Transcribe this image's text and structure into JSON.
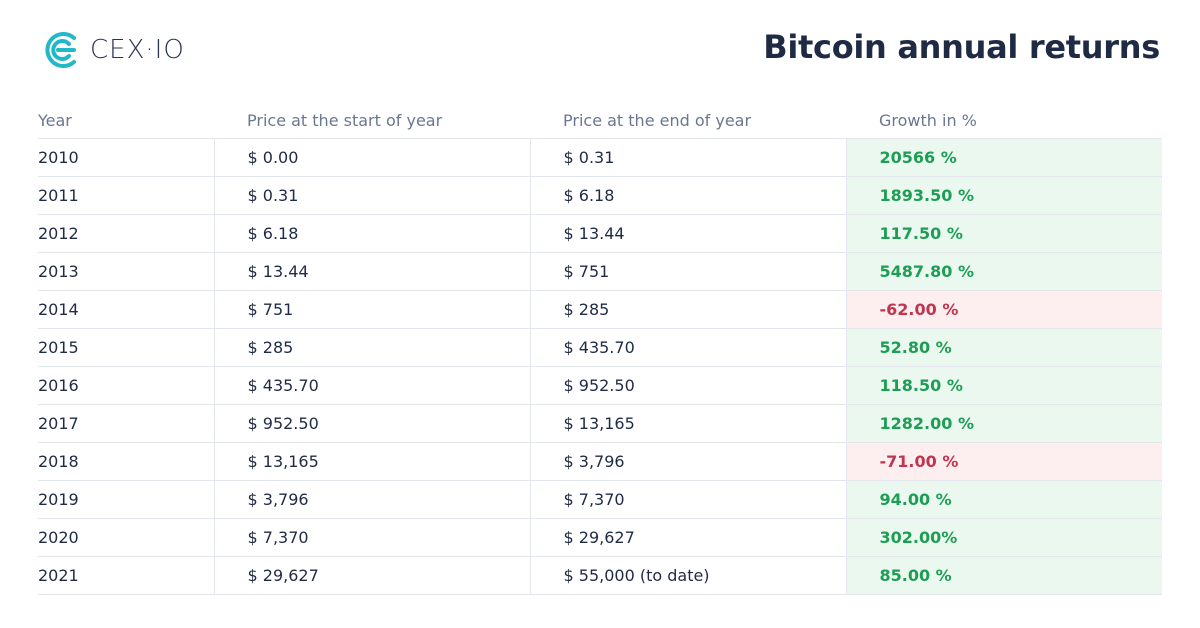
{
  "brand": {
    "name": "CEX·IO",
    "logo_icon": "cex-logo-icon",
    "accent": "#22b8c8"
  },
  "title": "Bitcoin annual returns",
  "colors": {
    "positive_bg": "#ebf8f0",
    "positive_text": "#1e9e55",
    "negative_bg": "#fdeef0",
    "negative_text": "#c03550"
  },
  "chart_data": {
    "type": "table",
    "title": "Bitcoin annual returns",
    "columns": [
      "Year",
      "Price at the start of year",
      "Price at the end of year",
      "Growth in %"
    ],
    "rows": [
      {
        "year": "2010",
        "start": "$ 0.00",
        "end": "$ 0.31",
        "growth": "20566 %",
        "sign": "pos"
      },
      {
        "year": "2011",
        "start": "$ 0.31",
        "end": "$ 6.18",
        "growth": "1893.50 %",
        "sign": "pos"
      },
      {
        "year": "2012",
        "start": "$ 6.18",
        "end": "$ 13.44",
        "growth": "117.50 %",
        "sign": "pos"
      },
      {
        "year": "2013",
        "start": "$ 13.44",
        "end": "$ 751",
        "growth": "5487.80 %",
        "sign": "pos"
      },
      {
        "year": "2014",
        "start": "$ 751",
        "end": "$ 285",
        "growth": "-62.00 %",
        "sign": "neg"
      },
      {
        "year": "2015",
        "start": "$ 285",
        "end": "$ 435.70",
        "growth": "52.80 %",
        "sign": "pos"
      },
      {
        "year": "2016",
        "start": "$ 435.70",
        "end": "$ 952.50",
        "growth": "118.50 %",
        "sign": "pos"
      },
      {
        "year": "2017",
        "start": "$ 952.50",
        "end": "$ 13,165",
        "growth": "1282.00 %",
        "sign": "pos"
      },
      {
        "year": "2018",
        "start": "$ 13,165",
        "end": "$ 3,796",
        "growth": "-71.00 %",
        "sign": "neg"
      },
      {
        "year": "2019",
        "start": "$ 3,796",
        "end": "$ 7,370",
        "growth": "94.00 %",
        "sign": "pos"
      },
      {
        "year": "2020",
        "start": "$ 7,370",
        "end": "$ 29,627",
        "growth": "302.00%",
        "sign": "pos"
      },
      {
        "year": "2021",
        "start": "$ 29,627",
        "end": "$ 55,000 (to date)",
        "growth": "85.00 %",
        "sign": "pos"
      }
    ]
  }
}
